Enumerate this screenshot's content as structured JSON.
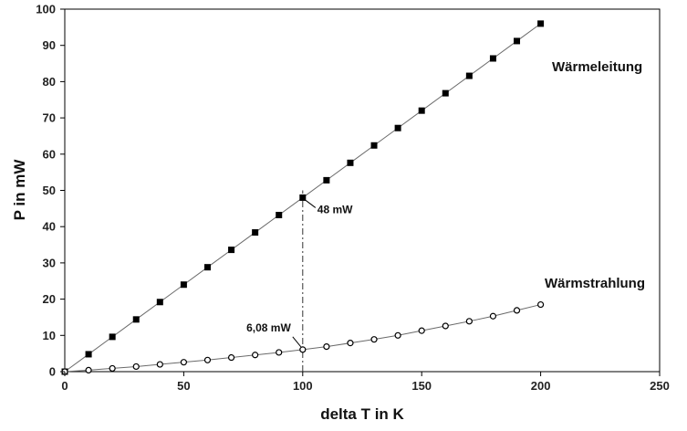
{
  "chart_data": {
    "type": "scatter",
    "title": "",
    "xlabel": "delta T in K",
    "ylabel": "P in mW",
    "xlim": [
      0,
      250
    ],
    "ylim": [
      0,
      100
    ],
    "x_ticks": [
      0,
      50,
      100,
      150,
      200,
      250
    ],
    "y_ticks": [
      0,
      10,
      20,
      30,
      40,
      50,
      60,
      70,
      80,
      90,
      100
    ],
    "grid": false,
    "legend": "none",
    "series": [
      {
        "name": "Wärmeleitung",
        "marker": "filled-square",
        "color": "#000000",
        "x": [
          0,
          10,
          20,
          30,
          40,
          50,
          60,
          70,
          80,
          90,
          100,
          110,
          120,
          130,
          140,
          150,
          160,
          170,
          180,
          190,
          200
        ],
        "y": [
          0,
          4.8,
          9.6,
          14.4,
          19.2,
          24.0,
          28.8,
          33.6,
          38.4,
          43.2,
          48.0,
          52.8,
          57.6,
          62.4,
          67.2,
          72.0,
          76.8,
          81.6,
          86.4,
          91.2,
          96.0
        ]
      },
      {
        "name": "Wärmstrahlung",
        "marker": "open-circle",
        "color": "#000000",
        "x": [
          0,
          10,
          20,
          30,
          40,
          50,
          60,
          70,
          80,
          90,
          100,
          110,
          120,
          130,
          140,
          150,
          160,
          170,
          180,
          190,
          200
        ],
        "y": [
          0,
          0.4,
          0.9,
          1.4,
          2.0,
          2.6,
          3.2,
          3.9,
          4.6,
          5.3,
          6.08,
          6.9,
          7.9,
          8.9,
          10.0,
          11.3,
          12.6,
          13.9,
          15.3,
          16.9,
          18.5
        ]
      }
    ],
    "annotations": [
      {
        "text": "48 mW",
        "x": 100,
        "y": 48
      },
      {
        "text": "6,08 mW",
        "x": 100,
        "y": 6.08
      }
    ],
    "reference_line": {
      "x": 100,
      "y_from": 0,
      "y_to": 50
    }
  }
}
